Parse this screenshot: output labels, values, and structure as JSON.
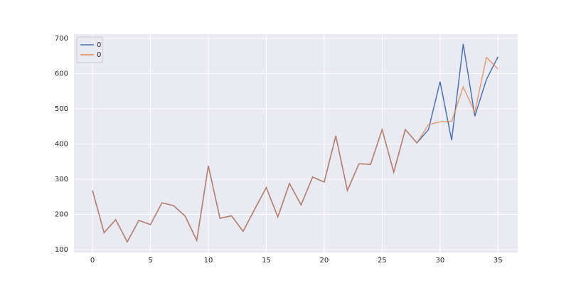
{
  "chart_data": {
    "type": "line",
    "x": [
      0,
      1,
      2,
      3,
      4,
      5,
      6,
      7,
      8,
      9,
      10,
      11,
      12,
      13,
      14,
      15,
      16,
      17,
      18,
      19,
      20,
      21,
      22,
      23,
      24,
      25,
      26,
      27,
      28,
      29,
      30,
      31,
      32,
      33,
      34,
      35
    ],
    "series": [
      {
        "name": "0",
        "color": "#4c72b0",
        "values": [
          268,
          148,
          185,
          122,
          183,
          171,
          233,
          225,
          195,
          126,
          338,
          189,
          196,
          152,
          215,
          276,
          193,
          288,
          227,
          306,
          292,
          423,
          268,
          344,
          342,
          441,
          320,
          441,
          403,
          441,
          577,
          411,
          684,
          479,
          583,
          648
        ]
      },
      {
        "name": "0",
        "color": "#dd8452",
        "values": [
          268,
          148,
          185,
          122,
          183,
          171,
          233,
          225,
          195,
          126,
          338,
          189,
          196,
          152,
          215,
          276,
          193,
          288,
          227,
          306,
          292,
          423,
          268,
          344,
          342,
          441,
          320,
          441,
          403,
          455,
          463,
          464,
          562,
          490,
          646,
          613
        ]
      }
    ],
    "xlim": [
      -1.6,
      36.7
    ],
    "ylim": [
      92,
      712
    ],
    "xticks": [
      0,
      5,
      10,
      15,
      20,
      25,
      30,
      35
    ],
    "yticks": [
      100,
      200,
      300,
      400,
      500,
      600,
      700
    ],
    "grid": true,
    "legend": "upper left"
  }
}
